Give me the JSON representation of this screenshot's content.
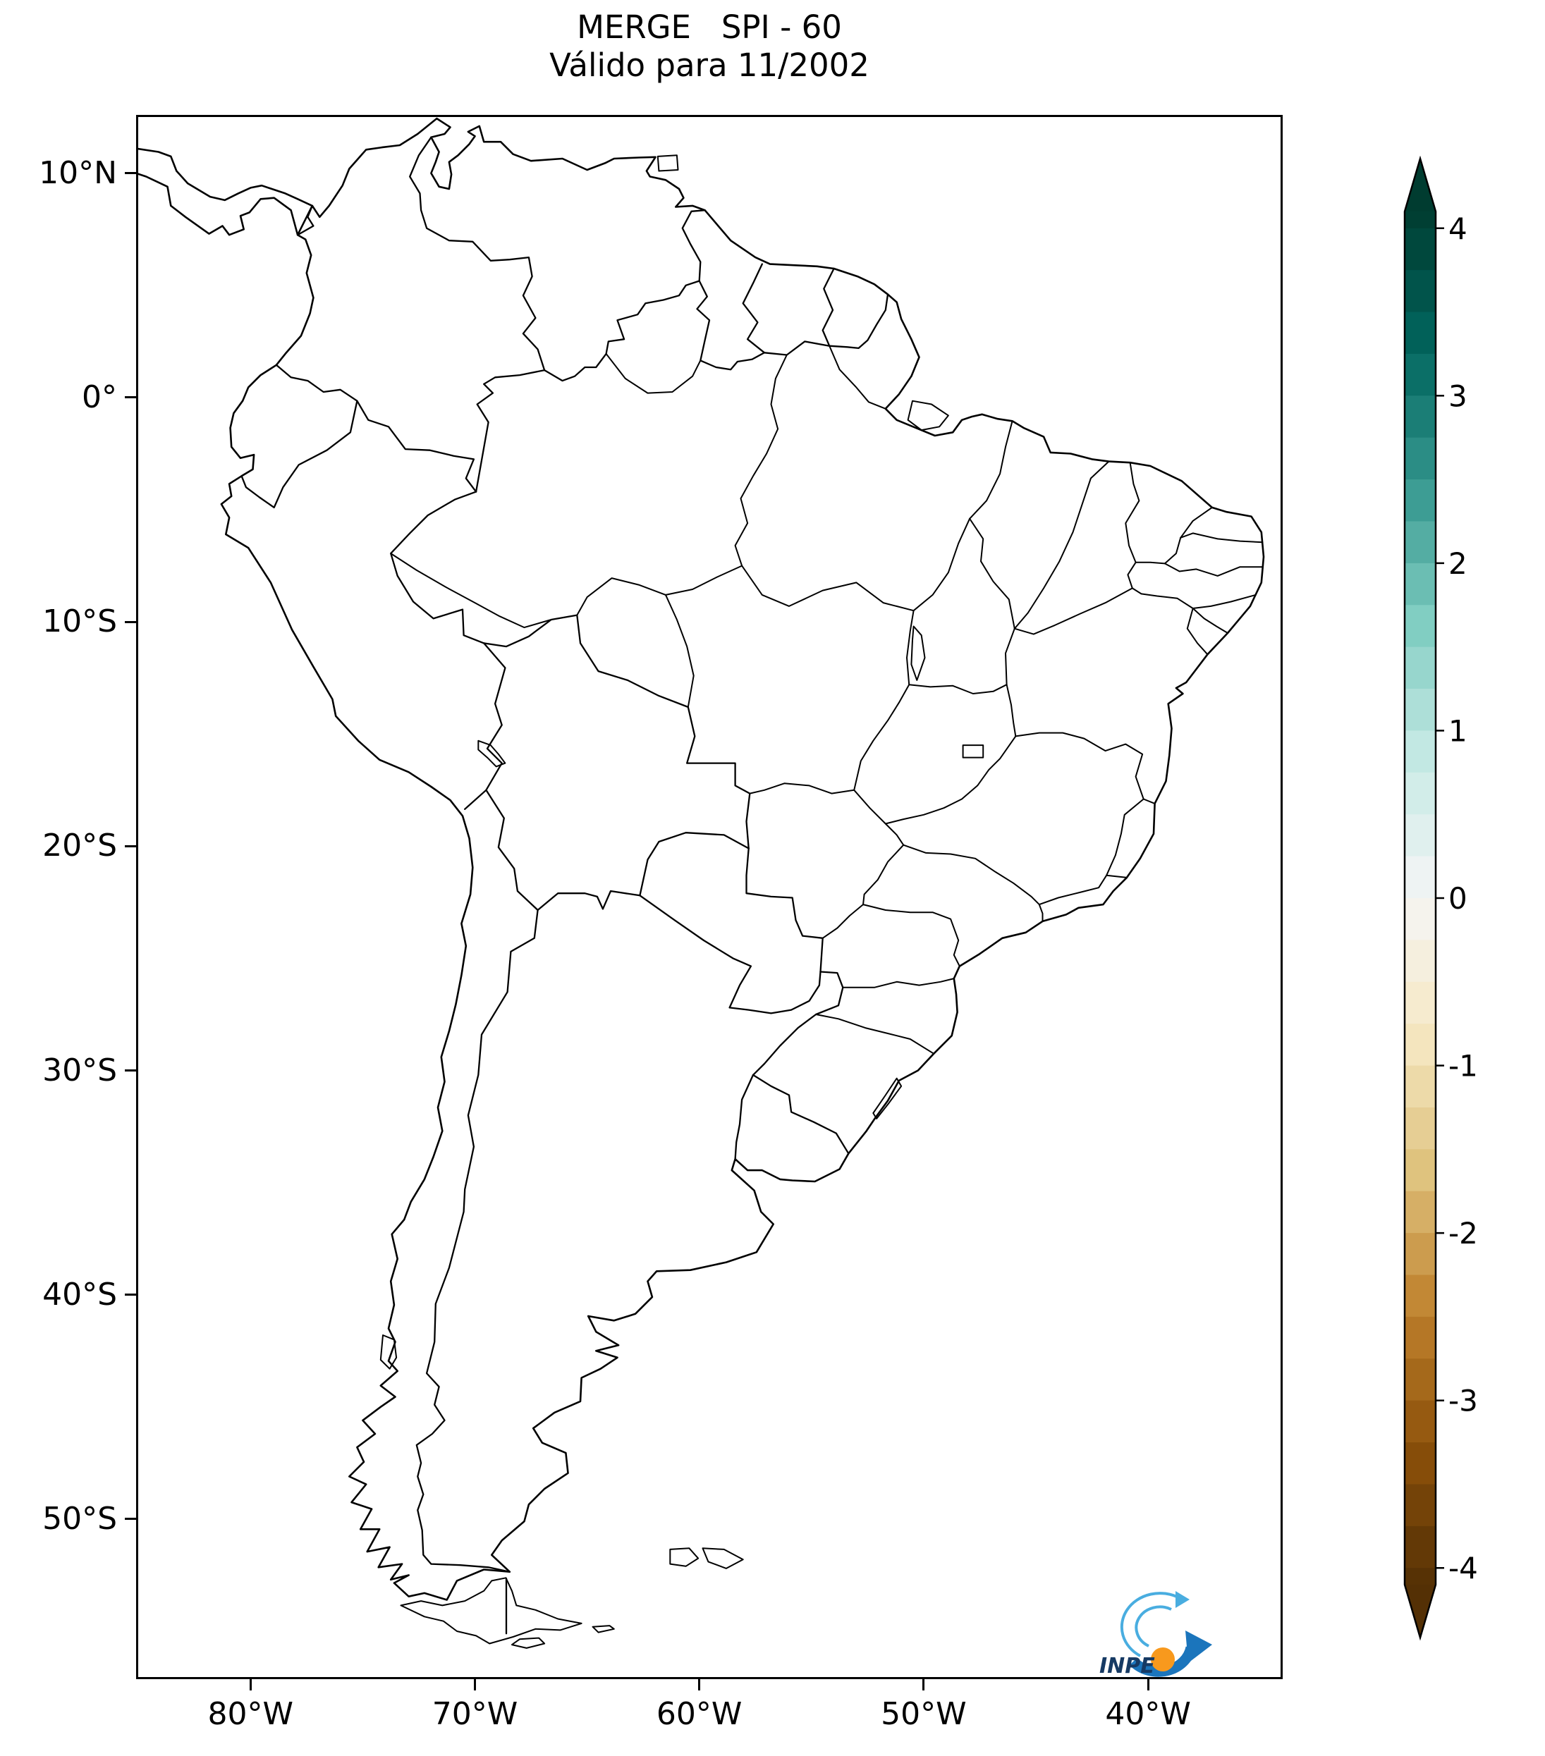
{
  "title": {
    "line1": "MERGE   SPI - 60",
    "line2": "Válido para 11/2002"
  },
  "map": {
    "projection": "PlateCarree",
    "extent": {
      "lon_min": -85.1,
      "lon_max": -34.0,
      "lat_min": -57.2,
      "lat_max": 12.6
    },
    "x_ticks": [
      {
        "label": "80°W",
        "lon": -80
      },
      {
        "label": "70°W",
        "lon": -70
      },
      {
        "label": "60°W",
        "lon": -60
      },
      {
        "label": "50°W",
        "lon": -50
      },
      {
        "label": "40°W",
        "lon": -40
      }
    ],
    "y_ticks": [
      {
        "label": "10°N",
        "lat": 10
      },
      {
        "label": "0°",
        "lat": 0
      },
      {
        "label": "10°S",
        "lat": -10
      },
      {
        "label": "20°S",
        "lat": -20
      },
      {
        "label": "30°S",
        "lat": -30
      },
      {
        "label": "40°S",
        "lat": -40
      },
      {
        "label": "50°S",
        "lat": -50
      }
    ],
    "line_color": "#000000"
  },
  "colorbar": {
    "tick_labels": [
      "4",
      "3",
      "2",
      "1",
      "0",
      "-1",
      "-2",
      "-3",
      "-4"
    ],
    "tick_values": [
      4,
      3,
      2,
      1,
      0,
      -1,
      -2,
      -3,
      -4
    ],
    "vmin": -4,
    "vmax": 4,
    "band_step": 0.25,
    "extend": "both",
    "colormap": [
      "#543005",
      "#8c510a",
      "#bf812d",
      "#dfc27d",
      "#f6e8c3",
      "#f5f5f5",
      "#c7eae5",
      "#80cdc1",
      "#35978f",
      "#01665e",
      "#003c30"
    ]
  },
  "logo": {
    "text": "INPE",
    "arrow_color": "#1b75bc",
    "swirl_color": "#49ade0",
    "dot_color": "#f8991d",
    "text_color": "#163a64"
  }
}
